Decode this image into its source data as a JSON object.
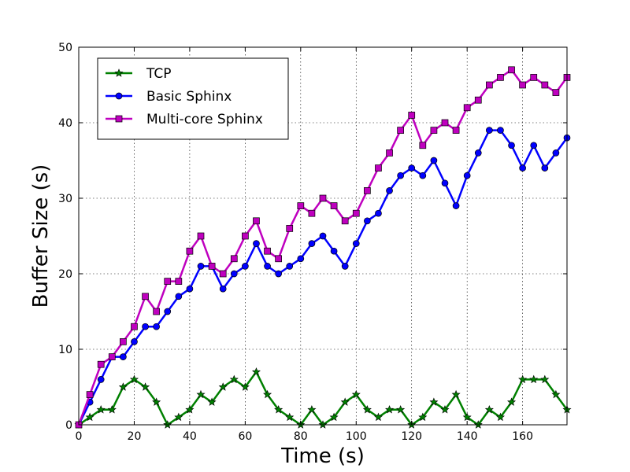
{
  "chart_data": {
    "type": "line",
    "xlabel": "Time (s)",
    "ylabel": "Buffer Size (s)",
    "xlim": [
      0,
      176
    ],
    "ylim": [
      0,
      50
    ],
    "xticks": [
      0,
      20,
      40,
      60,
      80,
      100,
      120,
      140,
      160
    ],
    "yticks": [
      0,
      10,
      20,
      30,
      40,
      50
    ],
    "grid": true,
    "legend_position": "top-left",
    "x": [
      0,
      4,
      8,
      12,
      16,
      20,
      24,
      28,
      32,
      36,
      40,
      44,
      48,
      52,
      56,
      60,
      64,
      68,
      72,
      76,
      80,
      84,
      88,
      92,
      96,
      100,
      104,
      108,
      112,
      116,
      120,
      124,
      128,
      132,
      136,
      140,
      144,
      148,
      152,
      156,
      160,
      164,
      168,
      172,
      176
    ],
    "series": [
      {
        "name": "TCP",
        "color": "#008000",
        "marker": "star",
        "values": [
          0,
          1,
          2,
          2,
          5,
          6,
          5,
          3,
          0,
          1,
          2,
          4,
          3,
          5,
          6,
          5,
          7,
          4,
          2,
          1,
          0,
          2,
          0,
          1,
          3,
          4,
          2,
          1,
          2,
          2,
          0,
          1,
          3,
          2,
          4,
          1,
          0,
          2,
          1,
          3,
          6,
          6,
          6,
          4,
          2
        ]
      },
      {
        "name": "Basic Sphinx",
        "color": "#0000ff",
        "marker": "circle",
        "values": [
          0,
          3,
          6,
          9,
          9,
          11,
          13,
          13,
          15,
          17,
          18,
          21,
          21,
          18,
          20,
          21,
          24,
          21,
          20,
          21,
          22,
          24,
          25,
          23,
          21,
          24,
          27,
          28,
          31,
          33,
          34,
          33,
          35,
          32,
          29,
          33,
          36,
          39,
          39,
          37,
          34,
          37,
          34,
          36,
          38
        ]
      },
      {
        "name": "Multi-core Sphinx",
        "color": "#bf00bf",
        "marker": "square",
        "values": [
          0,
          4,
          8,
          9,
          11,
          13,
          17,
          15,
          19,
          19,
          23,
          25,
          21,
          20,
          22,
          25,
          27,
          23,
          22,
          26,
          29,
          28,
          30,
          29,
          27,
          28,
          31,
          34,
          36,
          39,
          41,
          37,
          39,
          40,
          39,
          42,
          43,
          45,
          46,
          47,
          45,
          46,
          45,
          44,
          46
        ]
      }
    ]
  }
}
